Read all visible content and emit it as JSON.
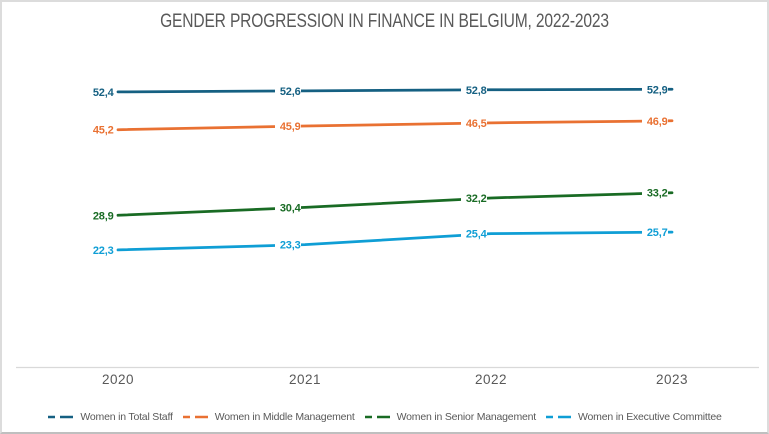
{
  "chart_data": {
    "type": "line",
    "title": "GENDER PROGRESSION IN FINANCE IN BELGIUM, 2022-2023",
    "categories": [
      "2020",
      "2021",
      "2022",
      "2023"
    ],
    "series": [
      {
        "name": "Women in Total Staff",
        "color": "#156082",
        "values": [
          52.4,
          52.6,
          52.8,
          52.9
        ],
        "point_labels": [
          "52,4",
          "52,6",
          "52,8",
          "52,9"
        ]
      },
      {
        "name": "Women in Middle Management",
        "color": "#E97132",
        "values": [
          45.2,
          45.9,
          46.5,
          46.9
        ],
        "point_labels": [
          "45,2",
          "45,9",
          "46,5",
          "46,9"
        ]
      },
      {
        "name": "Women in Senior Management",
        "color": "#196B24",
        "values": [
          28.9,
          30.4,
          32.2,
          33.2
        ],
        "point_labels": [
          "28,9",
          "30,4",
          "32,2",
          "33,2"
        ]
      },
      {
        "name": "Women in Executive Committee",
        "color": "#0F9ED5",
        "values": [
          22.3,
          23.3,
          25.4,
          25.7
        ],
        "point_labels": [
          "22,3",
          "23,3",
          "25,4",
          "25,7"
        ]
      }
    ],
    "ylim": [
      0,
      58
    ],
    "grid": false,
    "legend_position": "bottom",
    "decimal_separator": ",",
    "axis_line_color": "#D9D9D9",
    "text_color": "#595959"
  }
}
